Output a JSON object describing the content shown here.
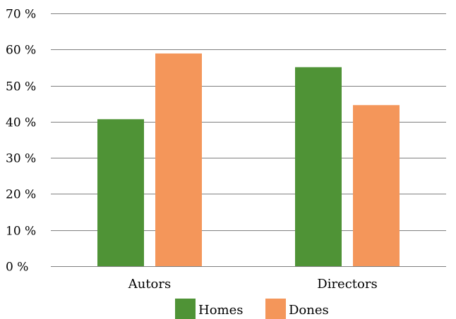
{
  "chart_data": {
    "type": "bar",
    "categories": [
      "Autors",
      "Directors"
    ],
    "series": [
      {
        "name": "Homes",
        "values": [
          40.7,
          55.1
        ],
        "color": "#4f9336"
      },
      {
        "name": "Dones",
        "values": [
          58.9,
          44.6
        ],
        "color": "#f4965a"
      }
    ],
    "ylim": [
      0,
      70
    ],
    "yticks": [
      0,
      10,
      20,
      30,
      40,
      50,
      60,
      70
    ],
    "ytick_labels": [
      "0 %",
      "10 %",
      "20 %",
      "30 %",
      "40 %",
      "50 %",
      "60 %",
      "70 %"
    ],
    "grid": true,
    "legend_position": "bottom-center"
  }
}
